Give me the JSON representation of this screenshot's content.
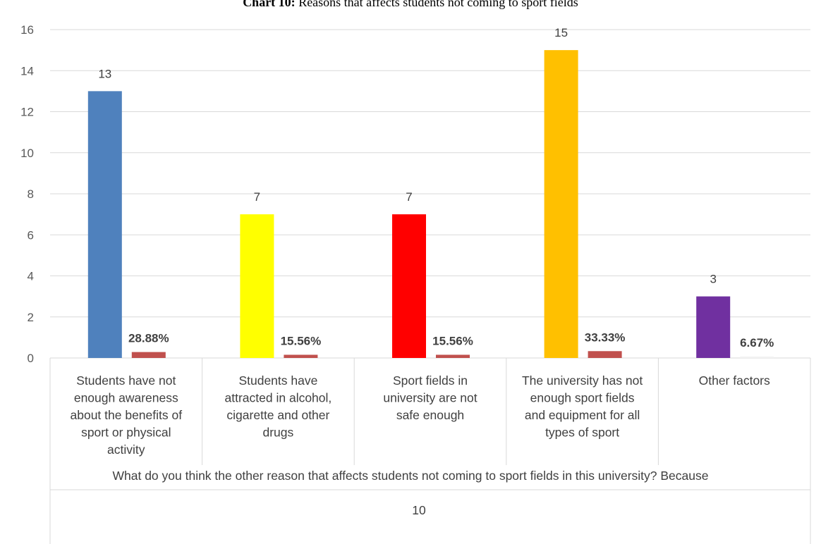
{
  "chart_data": {
    "type": "bar",
    "title_prefix": "Chart 10:",
    "title_rest": " Reasons that affects students not coming to sport fields",
    "categories": [
      [
        "Students have not",
        "enough awareness",
        "about the benefits of",
        "sport or physical",
        "activity"
      ],
      [
        "Students have",
        "attracted in alcohol,",
        "cigarette and other",
        "drugs"
      ],
      [
        "Sport fields in",
        "university are not",
        "safe enough"
      ],
      [
        "The university has not",
        "enough sport fields",
        "and equipment for all",
        "types of sport"
      ],
      [
        "Other factors"
      ]
    ],
    "series": [
      {
        "values": [
          13,
          7,
          7,
          15,
          3
        ],
        "colors": [
          "#4f81bd",
          "#ffff00",
          "#ff0000",
          "#ffc000",
          "#7030a0"
        ],
        "labels": [
          "13",
          "7",
          "7",
          "15",
          "3"
        ]
      },
      {
        "values": [
          0.2888,
          0.1556,
          0.1556,
          0.3333,
          0.0667
        ],
        "colors": [
          "#c0504d",
          "#c0504d",
          "#c0504d",
          "#c0504d",
          "#f2f2f2"
        ],
        "labels": [
          "28.88%",
          "15.56%",
          "15.56%",
          "33.33%",
          "6.67%"
        ]
      }
    ],
    "yticks": [
      "0",
      "2",
      "4",
      "6",
      "8",
      "10",
      "12",
      "14",
      "16"
    ],
    "ylim": [
      0,
      16
    ],
    "grid": true,
    "axis_note_line1": "What do you think the other reason that affects students not coming to sport fields in this university? Because",
    "axis_note_line2": "10"
  }
}
